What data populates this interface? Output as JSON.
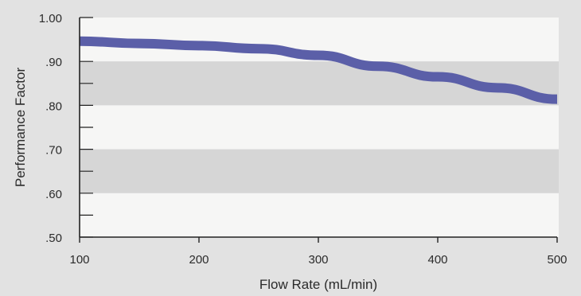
{
  "chart_data": {
    "type": "line",
    "xlabel": "Flow Rate (mL/min)",
    "ylabel": "Performance Factor",
    "xlim": [
      100,
      500
    ],
    "ylim": [
      0.5,
      1.0
    ],
    "x_ticks": [
      100,
      200,
      300,
      400,
      500
    ],
    "x_tick_labels": [
      "100",
      "200",
      "300",
      "400",
      "500"
    ],
    "y_ticks": [
      1.0,
      0.9,
      0.8,
      0.7,
      0.6,
      0.5
    ],
    "y_tick_labels": [
      "1.00",
      ".90",
      ".80",
      ".70",
      ".60",
      ".50"
    ],
    "y_minor_step": 0.05,
    "background_bands": "alternating white / gray every 0.10",
    "series": [
      {
        "color": "#5b5fa8",
        "x": [
          100,
          150,
          200,
          250,
          300,
          350,
          400,
          450,
          500
        ],
        "y": [
          0.946,
          0.941,
          0.936,
          0.929,
          0.914,
          0.889,
          0.865,
          0.84,
          0.814
        ]
      }
    ]
  },
  "colors": {
    "background": "#e2e2e2",
    "band_light": "#f6f6f5",
    "band_dark": "#d6d6d6",
    "axis": "#222222",
    "line": "#5b5fa8"
  }
}
